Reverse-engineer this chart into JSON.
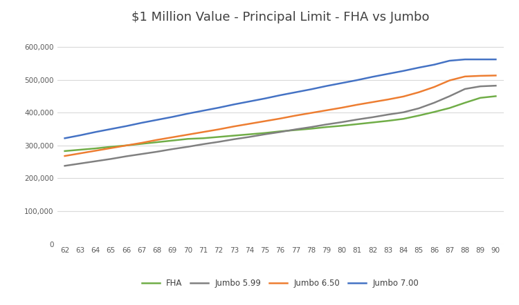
{
  "title": "$1 Million Value - Principal Limit - FHA vs Jumbo",
  "ages": [
    62,
    63,
    64,
    65,
    66,
    67,
    68,
    69,
    70,
    71,
    72,
    73,
    74,
    75,
    76,
    77,
    78,
    79,
    80,
    81,
    82,
    83,
    84,
    85,
    86,
    87,
    88,
    89,
    90
  ],
  "fha": [
    283000,
    287000,
    291000,
    296000,
    300000,
    305000,
    310000,
    315000,
    320000,
    322000,
    326000,
    330000,
    334000,
    338000,
    343000,
    347000,
    351000,
    356000,
    360000,
    365000,
    370000,
    375000,
    381000,
    391000,
    402000,
    414000,
    430000,
    445000,
    450000
  ],
  "jumbo_599": [
    238000,
    245000,
    252000,
    259000,
    267000,
    274000,
    281000,
    289000,
    296000,
    304000,
    311000,
    319000,
    326000,
    334000,
    341000,
    349000,
    356000,
    364000,
    371000,
    379000,
    386000,
    394000,
    401000,
    413000,
    430000,
    450000,
    472000,
    480000,
    482000
  ],
  "jumbo_650": [
    268000,
    276000,
    284000,
    292000,
    300000,
    308000,
    317000,
    325000,
    333000,
    341000,
    349000,
    358000,
    366000,
    374000,
    382000,
    391000,
    399000,
    407000,
    415000,
    424000,
    432000,
    440000,
    449000,
    462000,
    478000,
    498000,
    510000,
    512000,
    513000
  ],
  "jumbo_700": [
    322000,
    331000,
    341000,
    350000,
    359000,
    369000,
    378000,
    387000,
    397000,
    406000,
    415000,
    425000,
    434000,
    443000,
    453000,
    462000,
    471000,
    481000,
    490000,
    499000,
    509000,
    518000,
    527000,
    537000,
    546000,
    558000,
    562000,
    562000,
    562000
  ],
  "fha_color": "#70ad47",
  "jumbo_599_color": "#808080",
  "jumbo_650_color": "#ed7d31",
  "jumbo_700_color": "#4472c4",
  "background_color": "#ffffff",
  "grid_color": "#d9d9d9",
  "ylim": [
    0,
    650000
  ],
  "yticks": [
    0,
    100000,
    200000,
    300000,
    400000,
    500000,
    600000
  ],
  "legend_labels": [
    "FHA",
    "Jumbo 5.99",
    "Jumbo 6.50",
    "Jumbo 7.00"
  ],
  "title_fontsize": 13,
  "line_width": 1.8
}
